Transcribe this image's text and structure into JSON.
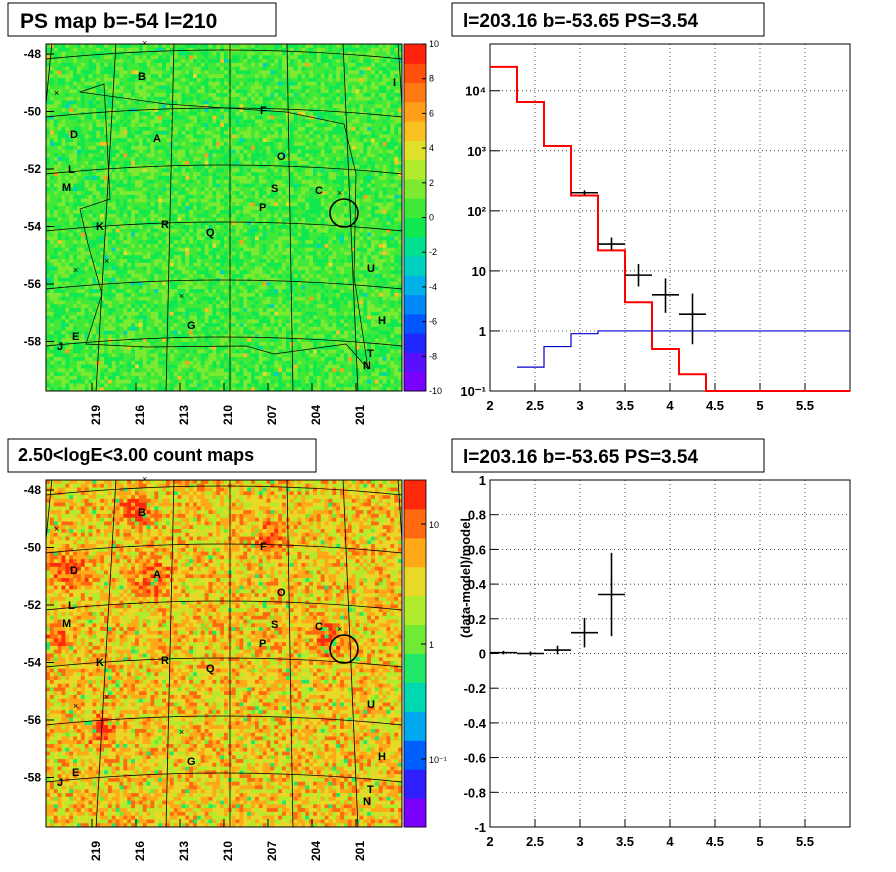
{
  "chart_data": [
    {
      "type": "heatmap",
      "title": "PS map b=-54 l=210",
      "ylabel": "",
      "xlabel": "",
      "x_tick_labels": [
        "219",
        "216",
        "213",
        "210",
        "207",
        "204",
        "201"
      ],
      "y_tick_labels": [
        "-48",
        "-50",
        "-52",
        "-54",
        "-56",
        "-58"
      ],
      "colorbar": {
        "min": -10,
        "max": 10,
        "labels": [
          "10",
          "8",
          "6",
          "4",
          "2",
          "0",
          "-2",
          "-4",
          "-6",
          "-8",
          "-10"
        ],
        "palette": [
          "#7a00ff",
          "#5a10ff",
          "#1e28ff",
          "#0056ff",
          "#0088f8",
          "#00b0e8",
          "#00d0c0",
          "#00e090",
          "#10e850",
          "#40e838",
          "#7cea30",
          "#b0ec2c",
          "#e0e02a",
          "#f8c020",
          "#ff9e18",
          "#ff7a12",
          "#ff500e",
          "#ff220c"
        ]
      },
      "annotations": [
        "B",
        "I",
        "F",
        "D",
        "A",
        "L",
        "O",
        "M",
        "S",
        "C",
        "P",
        "K",
        "R",
        "Q",
        "U",
        "H",
        "G",
        "E",
        "J",
        "T",
        "N"
      ]
    },
    {
      "type": "line",
      "title": "l=203.16 b=-53.65 PS=3.54",
      "xlabel": "",
      "ylabel": "",
      "xlim": [
        2,
        6
      ],
      "ylim": [
        0.1,
        60000
      ],
      "yscale": "log",
      "grid": true,
      "x_tick_labels": [
        "2",
        "2.5",
        "3",
        "3.5",
        "4",
        "4.5",
        "5",
        "5.5"
      ],
      "y_tick_labels": [
        "10⁻¹",
        "1",
        "10",
        "10²",
        "10³",
        "10⁴"
      ],
      "series": [
        {
          "color": "#ff0000",
          "style": "step",
          "edges": [
            2,
            2.3,
            2.6,
            2.9,
            3.2,
            3.5,
            3.8,
            4.1,
            4.4,
            6
          ],
          "values": [
            25000,
            6500,
            1200,
            180,
            22,
            3,
            0.5,
            0.19,
            0.1
          ]
        },
        {
          "color": "#0000cc",
          "style": "step",
          "edges": [
            2.3,
            2.6,
            2.9,
            3.2,
            6
          ],
          "values": [
            0.25,
            0.55,
            0.9,
            1.0
          ]
        },
        {
          "color": "#000000",
          "style": "errorbar",
          "points": [
            {
              "x": 3.05,
              "xerr": 0.15,
              "y": 200,
              "ylo": 180,
              "yhi": 220
            },
            {
              "x": 3.35,
              "xerr": 0.15,
              "y": 28,
              "ylo": 22,
              "yhi": 36
            },
            {
              "x": 3.65,
              "xerr": 0.15,
              "y": 8.5,
              "ylo": 5.5,
              "yhi": 13
            },
            {
              "x": 3.95,
              "xerr": 0.15,
              "y": 4,
              "ylo": 2,
              "yhi": 7.5
            },
            {
              "x": 4.25,
              "xerr": 0.15,
              "y": 1.9,
              "ylo": 0.6,
              "yhi": 4.2
            }
          ]
        }
      ]
    },
    {
      "type": "heatmap",
      "title": "2.50<logE<3.00 count maps",
      "x_tick_labels": [
        "219",
        "216",
        "213",
        "210",
        "207",
        "204",
        "201"
      ],
      "y_tick_labels": [
        "-48",
        "-50",
        "-52",
        "-54",
        "-56",
        "-58"
      ],
      "colorbar": {
        "scale": "log",
        "labels": [
          "10",
          "1",
          "10⁻¹"
        ],
        "palette": [
          "#7a00ff",
          "#3020ff",
          "#0060ff",
          "#00a8f0",
          "#00d8b0",
          "#20e868",
          "#70ea34",
          "#b0ec2c",
          "#e8d828",
          "#ffa818",
          "#ff6a10",
          "#ff2a0c"
        ]
      },
      "annotations": [
        "B",
        "D",
        "A",
        "F",
        "L",
        "O",
        "M",
        "S",
        "C",
        "P",
        "K",
        "R",
        "Q",
        "U",
        "H",
        "G",
        "E",
        "J",
        "T",
        "N"
      ]
    },
    {
      "type": "scatter",
      "title": "l=203.16 b=-53.65 PS=3.54",
      "xlabel": "",
      "ylabel": "(data-model)/model",
      "xlim": [
        2,
        6
      ],
      "ylim": [
        -1,
        1
      ],
      "grid": true,
      "x_tick_labels": [
        "2",
        "2.5",
        "3",
        "3.5",
        "4",
        "4.5",
        "5",
        "5.5"
      ],
      "y_tick_labels": [
        "1",
        "0.8",
        "0.6",
        "0.4",
        "0.2",
        "0",
        "-0.2",
        "-0.4",
        "-0.6",
        "-0.8",
        "-1"
      ],
      "points": [
        {
          "x": 2.15,
          "xerr": 0.15,
          "y": 0.005,
          "err": 0.01
        },
        {
          "x": 2.45,
          "xerr": 0.15,
          "y": 0.0,
          "err": 0.012
        },
        {
          "x": 2.75,
          "xerr": 0.15,
          "y": 0.02,
          "err": 0.025
        },
        {
          "x": 3.05,
          "xerr": 0.15,
          "y": 0.12,
          "err": 0.085
        },
        {
          "x": 3.35,
          "xerr": 0.15,
          "y": 0.34,
          "err": 0.24
        }
      ]
    }
  ]
}
